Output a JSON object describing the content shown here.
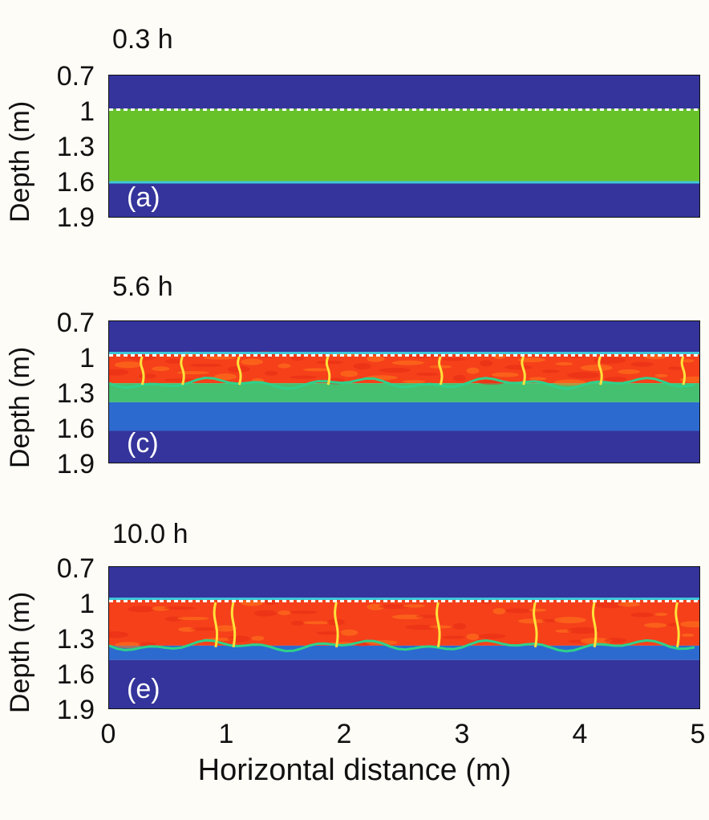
{
  "chart_data": [
    {
      "type": "heatmap",
      "title": "0.3 h",
      "panel_label": "(a)",
      "ylabel": "Depth (m)",
      "xlabel": "",
      "ylim": [
        0.7,
        1.9
      ],
      "yticks": [
        "0.7",
        "1",
        "1.3",
        "1.6",
        "1.9"
      ],
      "xlim": [
        0,
        5
      ],
      "reference_line_depth": 1.0,
      "layers": [
        {
          "from": 0.7,
          "to": 0.98,
          "color": "#34349c"
        },
        {
          "from": 0.98,
          "to": 1.6,
          "color": "#67c22a"
        },
        {
          "from": 1.6,
          "to": 1.9,
          "color": "#34349c"
        }
      ]
    },
    {
      "type": "heatmap",
      "title": "5.6 h",
      "panel_label": "(c)",
      "ylabel": "Depth (m)",
      "xlabel": "",
      "ylim": [
        0.7,
        1.9
      ],
      "yticks": [
        "0.7",
        "1",
        "1.3",
        "1.6",
        "1.9"
      ],
      "xlim": [
        0,
        5
      ],
      "reference_line_depth": 1.0,
      "plumes_x": [
        0.28,
        0.62,
        1.1,
        1.85,
        2.8,
        3.5,
        4.15,
        4.85
      ],
      "layers": [
        {
          "from": 0.7,
          "to": 0.97,
          "color": "#34349c"
        },
        {
          "from": 0.97,
          "to": 1.22,
          "color": "#f5401a"
        },
        {
          "from": 1.22,
          "to": 1.38,
          "color": "#45c070"
        },
        {
          "from": 1.38,
          "to": 1.62,
          "color": "#2c6ad0"
        },
        {
          "from": 1.62,
          "to": 1.9,
          "color": "#34349c"
        }
      ]
    },
    {
      "type": "heatmap",
      "title": "10.0 h",
      "panel_label": "(e)",
      "ylabel": "Depth (m)",
      "xlabel": "Horizontal distance (m)",
      "ylim": [
        0.7,
        1.9
      ],
      "yticks": [
        "0.7",
        "1",
        "1.3",
        "1.6",
        "1.9"
      ],
      "xlim": [
        0,
        5
      ],
      "xticks": [
        "0",
        "1",
        "2",
        "3",
        "4",
        "5"
      ],
      "reference_line_depth": 1.0,
      "plumes_x": [
        0.9,
        1.05,
        1.92,
        2.78,
        3.6,
        4.1,
        4.8
      ],
      "layers": [
        {
          "from": 0.7,
          "to": 0.97,
          "color": "#34349c"
        },
        {
          "from": 0.97,
          "to": 1.36,
          "color": "#f5401a"
        },
        {
          "from": 1.36,
          "to": 1.48,
          "color": "#2c6ad0"
        },
        {
          "from": 1.48,
          "to": 1.9,
          "color": "#34349c"
        }
      ]
    }
  ]
}
